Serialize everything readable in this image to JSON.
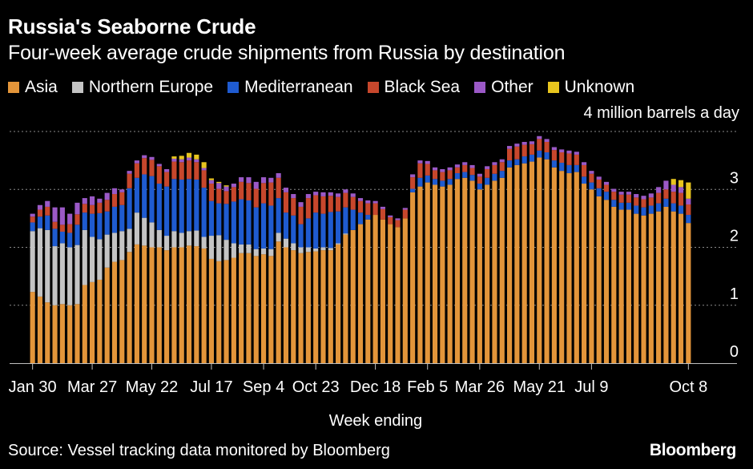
{
  "title": "Russia's Seaborne Crude",
  "subtitle": "Four-week average crude shipments from Russia by destination",
  "source": "Source: Vessel tracking data monitored by Bloomberg",
  "brand": "Bloomberg",
  "chart_data": {
    "type": "bar",
    "stacked": true,
    "title": "Russia's Seaborne Crude",
    "subtitle": "Four-week average crude shipments from Russia by destination",
    "xlabel": "Week ending",
    "ylabel": "",
    "unit_label": "4 million barrels a day",
    "ylim": [
      0,
      4
    ],
    "yticks": [
      0,
      1,
      2,
      3,
      4
    ],
    "ytick_labels": [
      "0",
      "1",
      "2",
      "3",
      "4 million barrels a day"
    ],
    "grid": true,
    "legend_position": "top",
    "xtick_labels": [
      {
        "index": 0,
        "label": "Jan 30"
      },
      {
        "index": 8,
        "label": "Mar 27"
      },
      {
        "index": 16,
        "label": "May 22"
      },
      {
        "index": 24,
        "label": "Jul 17"
      },
      {
        "index": 31,
        "label": "Sep 4"
      },
      {
        "index": 38,
        "label": "Oct 23"
      },
      {
        "index": 46,
        "label": "Dec 18"
      },
      {
        "index": 53,
        "label": "Feb 5"
      },
      {
        "index": 60,
        "label": "Mar 26"
      },
      {
        "index": 68,
        "label": "May 21"
      },
      {
        "index": 75,
        "label": "Jul 9"
      },
      {
        "index": 88,
        "label": "Oct 8"
      }
    ],
    "series": [
      {
        "name": "Asia",
        "color": "#E3953A",
        "values": [
          1.23,
          1.15,
          1.05,
          1.0,
          1.02,
          1.0,
          1.02,
          1.35,
          1.4,
          1.44,
          1.65,
          1.75,
          1.78,
          1.92,
          2.05,
          2.03,
          2.0,
          2.0,
          1.95,
          2.0,
          2.0,
          2.03,
          2.02,
          1.98,
          1.8,
          1.76,
          1.78,
          1.82,
          1.9,
          1.9,
          1.85,
          1.88,
          1.85,
          2.1,
          2.0,
          1.95,
          1.9,
          1.92,
          1.93,
          1.95,
          1.95,
          2.05,
          2.22,
          2.3,
          2.4,
          2.48,
          2.56,
          2.48,
          2.4,
          2.35,
          2.5,
          2.95,
          3.05,
          3.12,
          3.08,
          3.05,
          3.08,
          3.18,
          3.2,
          3.15,
          3.0,
          3.08,
          3.15,
          3.2,
          3.38,
          3.42,
          3.45,
          3.48,
          3.55,
          3.52,
          3.38,
          3.32,
          3.28,
          3.3,
          3.1,
          3.0,
          2.88,
          2.82,
          2.7,
          2.65,
          2.65,
          2.58,
          2.55,
          2.58,
          2.62,
          2.7,
          2.62,
          2.58,
          2.42
        ]
      },
      {
        "name": "Northern Europe",
        "color": "#C4C4C4",
        "values": [
          1.05,
          1.18,
          1.25,
          1.02,
          1.05,
          1.0,
          1.02,
          0.95,
          0.78,
          0.7,
          0.57,
          0.5,
          0.5,
          0.4,
          0.55,
          0.48,
          0.43,
          0.3,
          0.25,
          0.28,
          0.25,
          0.25,
          0.27,
          0.2,
          0.4,
          0.45,
          0.35,
          0.25,
          0.15,
          0.15,
          0.12,
          0.1,
          0.12,
          0.15,
          0.15,
          0.12,
          0.1,
          0.08,
          0.05,
          0.05,
          0.04,
          0.02,
          0.02,
          0.0,
          0.0,
          0.0,
          0.0,
          0.0,
          0.0,
          0.0,
          0.0,
          0.0,
          0.0,
          0.0,
          0.0,
          0.0,
          0.0,
          0.0,
          0.0,
          0.0,
          0.0,
          0.0,
          0.0,
          0.0,
          0.0,
          0.0,
          0.0,
          0.0,
          0.0,
          0.0,
          0.0,
          0.0,
          0.0,
          0.0,
          0.0,
          0.0,
          0.0,
          0.0,
          0.0,
          0.0,
          0.0,
          0.0,
          0.0,
          0.0,
          0.0,
          0.0,
          0.0,
          0.0,
          0.0
        ]
      },
      {
        "name": "Mediterranean",
        "color": "#1F5BD0",
        "values": [
          0.15,
          0.2,
          0.25,
          0.3,
          0.2,
          0.25,
          0.35,
          0.3,
          0.4,
          0.45,
          0.4,
          0.45,
          0.45,
          0.7,
          0.6,
          0.75,
          0.8,
          0.8,
          0.85,
          0.9,
          0.92,
          0.9,
          0.88,
          0.85,
          0.6,
          0.55,
          0.62,
          0.72,
          0.78,
          0.76,
          0.72,
          0.78,
          0.75,
          0.6,
          0.45,
          0.48,
          0.4,
          0.5,
          0.62,
          0.58,
          0.62,
          0.55,
          0.45,
          0.35,
          0.2,
          0.08,
          0.0,
          0.0,
          0.0,
          0.0,
          0.0,
          0.06,
          0.15,
          0.12,
          0.1,
          0.1,
          0.1,
          0.1,
          0.1,
          0.1,
          0.1,
          0.12,
          0.12,
          0.12,
          0.12,
          0.1,
          0.12,
          0.12,
          0.12,
          0.12,
          0.12,
          0.14,
          0.14,
          0.12,
          0.12,
          0.12,
          0.14,
          0.14,
          0.12,
          0.12,
          0.12,
          0.14,
          0.14,
          0.14,
          0.14,
          0.14,
          0.14,
          0.14,
          0.14
        ]
      },
      {
        "name": "Black Sea",
        "color": "#C7472C",
        "values": [
          0.1,
          0.12,
          0.15,
          0.12,
          0.12,
          0.15,
          0.18,
          0.15,
          0.15,
          0.18,
          0.2,
          0.22,
          0.22,
          0.25,
          0.25,
          0.28,
          0.28,
          0.3,
          0.25,
          0.3,
          0.3,
          0.32,
          0.3,
          0.3,
          0.3,
          0.25,
          0.22,
          0.25,
          0.3,
          0.3,
          0.32,
          0.35,
          0.4,
          0.35,
          0.35,
          0.3,
          0.3,
          0.35,
          0.3,
          0.3,
          0.28,
          0.25,
          0.25,
          0.22,
          0.2,
          0.2,
          0.2,
          0.18,
          0.12,
          0.12,
          0.15,
          0.2,
          0.25,
          0.2,
          0.15,
          0.15,
          0.15,
          0.1,
          0.12,
          0.12,
          0.12,
          0.15,
          0.15,
          0.15,
          0.2,
          0.22,
          0.2,
          0.18,
          0.2,
          0.18,
          0.18,
          0.18,
          0.2,
          0.18,
          0.2,
          0.15,
          0.15,
          0.12,
          0.14,
          0.14,
          0.14,
          0.14,
          0.14,
          0.14,
          0.18,
          0.16,
          0.2,
          0.22,
          0.18
        ]
      },
      {
        "name": "Other",
        "color": "#9B59C7",
        "values": [
          0.05,
          0.08,
          0.1,
          0.25,
          0.3,
          0.18,
          0.2,
          0.1,
          0.15,
          0.07,
          0.12,
          0.1,
          0.05,
          0.05,
          0.05,
          0.05,
          0.05,
          0.04,
          0.05,
          0.05,
          0.05,
          0.05,
          0.05,
          0.04,
          0.06,
          0.1,
          0.08,
          0.06,
          0.08,
          0.1,
          0.12,
          0.1,
          0.08,
          0.08,
          0.08,
          0.07,
          0.08,
          0.07,
          0.06,
          0.07,
          0.06,
          0.06,
          0.06,
          0.06,
          0.05,
          0.05,
          0.04,
          0.04,
          0.03,
          0.03,
          0.03,
          0.05,
          0.05,
          0.05,
          0.05,
          0.05,
          0.05,
          0.05,
          0.05,
          0.05,
          0.05,
          0.05,
          0.05,
          0.05,
          0.05,
          0.05,
          0.05,
          0.05,
          0.05,
          0.05,
          0.05,
          0.05,
          0.05,
          0.05,
          0.05,
          0.05,
          0.05,
          0.05,
          0.05,
          0.05,
          0.05,
          0.06,
          0.06,
          0.07,
          0.1,
          0.15,
          0.12,
          0.1,
          0.1
        ]
      },
      {
        "name": "Unknown",
        "color": "#E8C51E",
        "values": [
          0.0,
          0.0,
          0.0,
          0.0,
          0.0,
          0.0,
          0.0,
          0.0,
          0.0,
          0.0,
          0.0,
          0.0,
          0.0,
          0.0,
          0.0,
          0.0,
          0.0,
          0.0,
          0.0,
          0.04,
          0.06,
          0.08,
          0.08,
          0.1,
          0.03,
          0.02,
          0.02,
          0.0,
          0.0,
          0.0,
          0.0,
          0.0,
          0.0,
          0.0,
          0.0,
          0.0,
          0.0,
          0.0,
          0.0,
          0.0,
          0.0,
          0.0,
          0.0,
          0.0,
          0.0,
          0.0,
          0.0,
          0.0,
          0.0,
          0.0,
          0.0,
          0.0,
          0.0,
          0.0,
          0.0,
          0.0,
          0.0,
          0.0,
          0.0,
          0.0,
          0.0,
          0.0,
          0.0,
          0.0,
          0.0,
          0.0,
          0.0,
          0.0,
          0.0,
          0.0,
          0.0,
          0.0,
          0.0,
          0.0,
          0.0,
          0.0,
          0.0,
          0.0,
          0.0,
          0.0,
          0.0,
          0.0,
          0.0,
          0.0,
          0.0,
          0.0,
          0.1,
          0.12,
          0.28
        ]
      }
    ]
  }
}
